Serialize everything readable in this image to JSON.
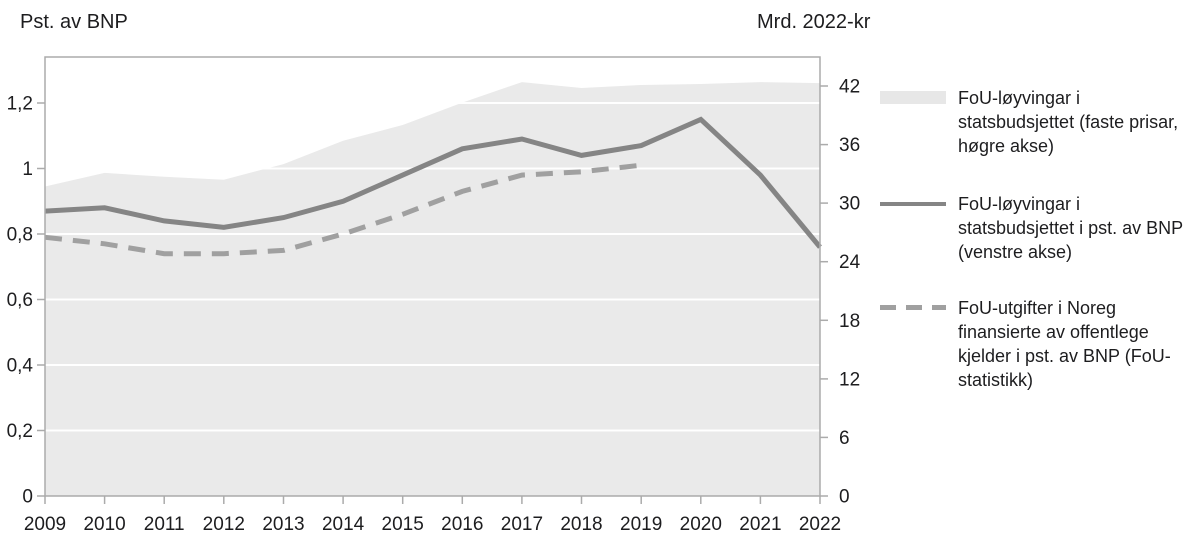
{
  "chart_data": {
    "type": "area+line combo",
    "x": [
      2009,
      2010,
      2011,
      2012,
      2013,
      2014,
      2015,
      2016,
      2017,
      2018,
      2019,
      2020,
      2021,
      2022
    ],
    "series": [
      {
        "name": "FoU-løyvingar i statsbudsjettet (faste prisar, høgre akse)",
        "kind": "area",
        "axis": "right",
        "color": "#eaeaea",
        "values": [
          31.7,
          33.1,
          32.7,
          32.4,
          34.0,
          36.4,
          38.0,
          40.3,
          42.4,
          41.8,
          42.1,
          42.2,
          42.4,
          42.3
        ]
      },
      {
        "name": "FoU-løyvingar i statsbudsjettet i pst. av BNP (venstre akse)",
        "kind": "solid-line",
        "axis": "left",
        "color": "#858585",
        "values": [
          0.87,
          0.88,
          0.84,
          0.82,
          0.85,
          0.9,
          0.98,
          1.06,
          1.09,
          1.04,
          1.07,
          1.15,
          0.98,
          0.76
        ]
      },
      {
        "name": "FoU-utgifter i Noreg finansierte av offentlege kjelder i pst. av BNP (FoU-statistikk)",
        "kind": "dashed-line",
        "axis": "left",
        "color": "#a0a0a0",
        "values": [
          0.79,
          0.77,
          0.74,
          0.74,
          0.75,
          0.8,
          0.86,
          0.93,
          0.98,
          0.99,
          1.01,
          null,
          null,
          null
        ]
      }
    ],
    "left_axis": {
      "title": "Pst. av BNP",
      "min": 0,
      "max": 1.35,
      "tick_values": [
        0,
        0.2,
        0.4,
        0.6,
        0.8,
        1.0,
        1.2
      ],
      "tick_labels": [
        "0",
        "0,2",
        "0,4",
        "0,6",
        "0,8",
        "1",
        "1,2"
      ]
    },
    "right_axis": {
      "title": "Mrd. 2022-kr",
      "min": 0,
      "max": 45,
      "tick_values": [
        0,
        6,
        12,
        18,
        24,
        30,
        36,
        42
      ],
      "tick_labels": [
        "0",
        "6",
        "12",
        "18",
        "24",
        "30",
        "36",
        "42"
      ]
    },
    "x_axis": {
      "tick_labels": [
        "2009",
        "2010",
        "2011",
        "2012",
        "2013",
        "2014",
        "2015",
        "2016",
        "2017",
        "2018",
        "2019",
        "2020",
        "2021",
        "2022"
      ]
    },
    "grid": "white horizontal lines at left-axis ticks, visible over shaded area",
    "legend_position": "right"
  },
  "colors": {
    "background": "#ffffff",
    "area_fill": "#eaeaea",
    "solid_line": "#858585",
    "dashed_line": "#a0a0a0",
    "axis_stroke": "#ababab",
    "gridline": "#ffffff",
    "text": "#1d1d1f"
  }
}
